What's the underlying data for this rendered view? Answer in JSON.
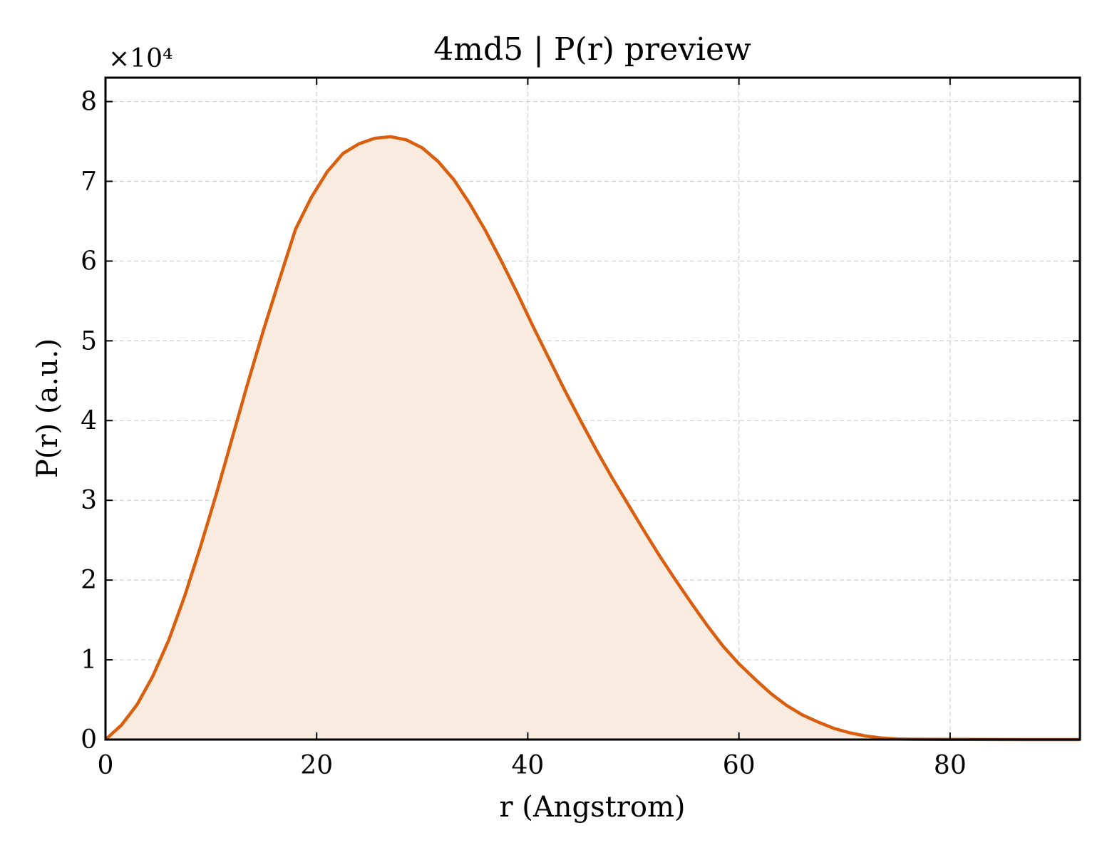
{
  "chart_data": {
    "type": "area",
    "title": "4md5 | P(r) preview",
    "xlabel": "r (Angstrom)",
    "ylabel": "P(r) (a.u.)",
    "y_scale_label": "×10⁴",
    "xlim": [
      0,
      92.3
    ],
    "ylim": [
      0,
      8.3
    ],
    "y_multiplier": 10000,
    "x_ticks": [
      0,
      20,
      40,
      60,
      80
    ],
    "y_ticks": [
      0,
      1,
      2,
      3,
      4,
      5,
      6,
      7,
      8
    ],
    "grid": true,
    "line_color": "#d95f0e",
    "fill_color": "#f9ebe0",
    "series": [
      {
        "x": [
          0,
          1.5,
          3,
          4.5,
          6,
          7.5,
          9,
          10.5,
          12,
          13.5,
          15,
          16.5,
          18,
          19.5,
          21,
          22.5,
          24,
          25.5,
          27,
          28.5,
          30,
          31.5,
          33,
          34.5,
          36,
          37.5,
          39,
          40.5,
          42,
          43.5,
          45,
          46.5,
          48,
          49.5,
          51,
          52.5,
          54,
          55.5,
          57,
          58.5,
          60,
          61.5,
          63,
          64.5,
          66,
          67.5,
          69,
          70.5,
          72,
          73.5,
          75,
          76.5,
          78,
          79.5,
          81,
          84,
          87,
          90,
          92.3
        ],
        "y": [
          0,
          0.18,
          0.44,
          0.8,
          1.25,
          1.8,
          2.42,
          3.08,
          3.78,
          4.48,
          5.15,
          5.78,
          6.4,
          6.8,
          7.12,
          7.35,
          7.47,
          7.54,
          7.56,
          7.52,
          7.42,
          7.25,
          7.02,
          6.72,
          6.38,
          6.0,
          5.6,
          5.18,
          4.78,
          4.38,
          4.0,
          3.63,
          3.28,
          2.95,
          2.62,
          2.3,
          2.0,
          1.71,
          1.43,
          1.17,
          0.95,
          0.76,
          0.58,
          0.43,
          0.31,
          0.22,
          0.14,
          0.085,
          0.045,
          0.02,
          0.008,
          0.004,
          0.003,
          0.002,
          0.002,
          0.001,
          0.0,
          0.0,
          0.0
        ]
      }
    ]
  }
}
